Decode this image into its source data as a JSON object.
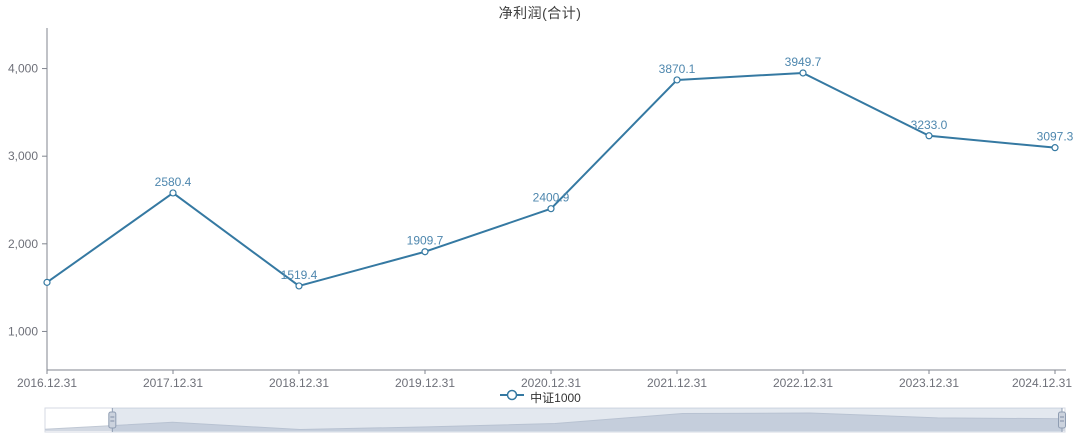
{
  "title": "净利润(合计)",
  "legend": {
    "items": [
      {
        "label": "中证1000"
      }
    ]
  },
  "colors": {
    "series": "#3579a2",
    "marker_fill": "#ffffff",
    "data_label": "#4e87ae",
    "axis_line": "#81868f",
    "axis_text": "#6e7079",
    "title_text": "#404040",
    "legend_text": "#333333",
    "slider_filler": "rgba(167,183,204,0.32)",
    "slider_preview_fill": "#d3d9e3",
    "slider_preview_line": "#c0c8d4",
    "slider_border": "#d5dae3",
    "slider_handle_fill": "#ccd3de",
    "slider_handle_stroke": "#8f9db2",
    "slider_handle_grip": "#7f8ea6"
  },
  "chart_data": {
    "type": "line",
    "title": "净利润(合计)",
    "categories": [
      "2016.12.31",
      "2017.12.31",
      "2018.12.31",
      "2019.12.31",
      "2020.12.31",
      "2021.12.31",
      "2022.12.31",
      "2023.12.31",
      "2024.12.31"
    ],
    "series": [
      {
        "name": "中证1000",
        "values": [
          1560,
          2580.4,
          1519.4,
          1909.7,
          2400.9,
          3870.1,
          3949.7,
          3233.0,
          3097.3
        ],
        "point_labels": [
          "",
          "2580.4",
          "1519.4",
          "1909.7",
          "2400.9",
          "3870.1",
          "3949.7",
          "3233.0",
          "3097.3"
        ]
      }
    ],
    "xlabel": "",
    "ylabel": "",
    "y_ticks": {
      "values": [
        1000,
        2000,
        3000,
        4000
      ],
      "labels": [
        "1,000",
        "2,000",
        "3,000",
        "4,000"
      ]
    },
    "ylim": [
      560,
      4440
    ],
    "grid": false,
    "legend_position": "bottom",
    "marker": "hollow-circle"
  },
  "datazoom": {
    "start_percent": 6.6,
    "end_percent": 100
  }
}
